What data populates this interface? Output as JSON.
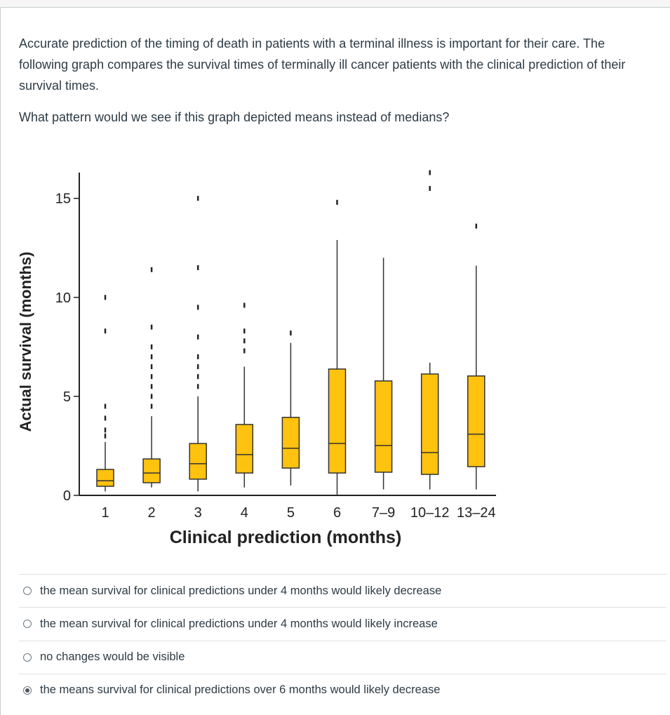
{
  "question": {
    "paragraph": "Accurate prediction of the timing of death in patients with a terminal illness is important for their care. The following graph compares the survival times of terminally ill cancer patients with the clinical prediction of their survival times.",
    "prompt": "What pattern would we see if this graph depicted means instead of medians?"
  },
  "chart_data": {
    "type": "box",
    "x_label": "Clinical prediction (months)",
    "y_label": "Actual survival (months)",
    "categories": [
      "1",
      "2",
      "3",
      "4",
      "5",
      "6",
      "7–9",
      "10–12",
      "13–24"
    ],
    "color": "#ffc20e",
    "boxes": [
      {
        "low": 0.2,
        "q1": 0.46,
        "median": 0.74,
        "q3": 1.31,
        "high": 2.7,
        "outliers": [
          3.0,
          3.3,
          3.9,
          4.5,
          8.3,
          10.0
        ]
      },
      {
        "low": 0.4,
        "q1": 0.64,
        "median": 1.13,
        "q3": 1.84,
        "high": 4.0,
        "outliers": [
          4.5,
          5.0,
          5.5,
          6.0,
          6.5,
          7.0,
          7.5,
          8.5,
          11.4
        ]
      },
      {
        "low": 0.2,
        "q1": 0.82,
        "median": 1.6,
        "q3": 2.62,
        "high": 5.0,
        "outliers": [
          5.5,
          6.0,
          6.5,
          7.0,
          8.0,
          9.5,
          11.5,
          15.0
        ]
      },
      {
        "low": 0.4,
        "q1": 1.13,
        "median": 2.06,
        "q3": 3.58,
        "high": 6.5,
        "outliers": [
          7.3,
          7.8,
          8.3,
          9.6
        ]
      },
      {
        "low": 0.5,
        "q1": 1.38,
        "median": 2.38,
        "q3": 3.94,
        "high": 7.7,
        "outliers": [
          8.2
        ]
      },
      {
        "low": 0.0,
        "q1": 1.13,
        "median": 2.62,
        "q3": 6.38,
        "high": 12.9,
        "outliers": [
          14.8
        ]
      },
      {
        "low": 0.3,
        "q1": 1.17,
        "median": 2.52,
        "q3": 5.78,
        "high": 12.0,
        "outliers": []
      },
      {
        "low": 0.3,
        "q1": 1.06,
        "median": 2.16,
        "q3": 6.13,
        "high": 6.7,
        "outliers": [
          15.5,
          16.3
        ]
      },
      {
        "low": 0.3,
        "q1": 1.45,
        "median": 3.09,
        "q3": 6.03,
        "high": 11.6,
        "outliers": [
          13.6
        ]
      }
    ],
    "ylim": [
      0,
      16.3
    ],
    "yticks": [
      0,
      5,
      10,
      15
    ]
  },
  "answers": {
    "options": [
      "the mean survival for clinical predictions under 4 months would likely decrease",
      "the mean survival for clinical predictions under 4 months would likely increase",
      "no changes would be visible",
      "the means survival for clinical predictions over 6 months would likely decrease"
    ],
    "selected": 3
  }
}
